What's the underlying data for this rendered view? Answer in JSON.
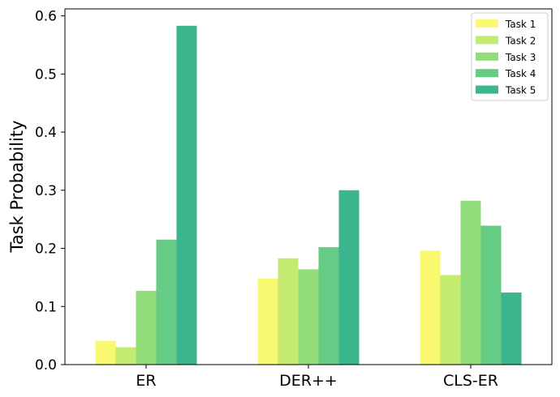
{
  "chart_data": {
    "type": "bar",
    "categories": [
      "ER",
      "DER++",
      "CLS-ER"
    ],
    "series": [
      {
        "name": "Task 1",
        "color": "#f9f871",
        "values": [
          0.041,
          0.148,
          0.196
        ]
      },
      {
        "name": "Task 2",
        "color": "#c4ea70",
        "values": [
          0.03,
          0.183,
          0.154
        ]
      },
      {
        "name": "Task 3",
        "color": "#93dc7a",
        "values": [
          0.127,
          0.164,
          0.282
        ]
      },
      {
        "name": "Task 4",
        "color": "#66cb84",
        "values": [
          0.215,
          0.202,
          0.239
        ]
      },
      {
        "name": "Task 5",
        "color": "#3bb68e",
        "values": [
          0.583,
          0.3,
          0.124
        ]
      }
    ],
    "title": "",
    "xlabel": "",
    "ylabel": "Task Probability",
    "ylim": [
      0,
      0.612
    ],
    "yticks": [
      "0.0",
      "0.1",
      "0.2",
      "0.3",
      "0.4",
      "0.5",
      "0.6"
    ],
    "grid": false,
    "legend_position": "top-right"
  }
}
